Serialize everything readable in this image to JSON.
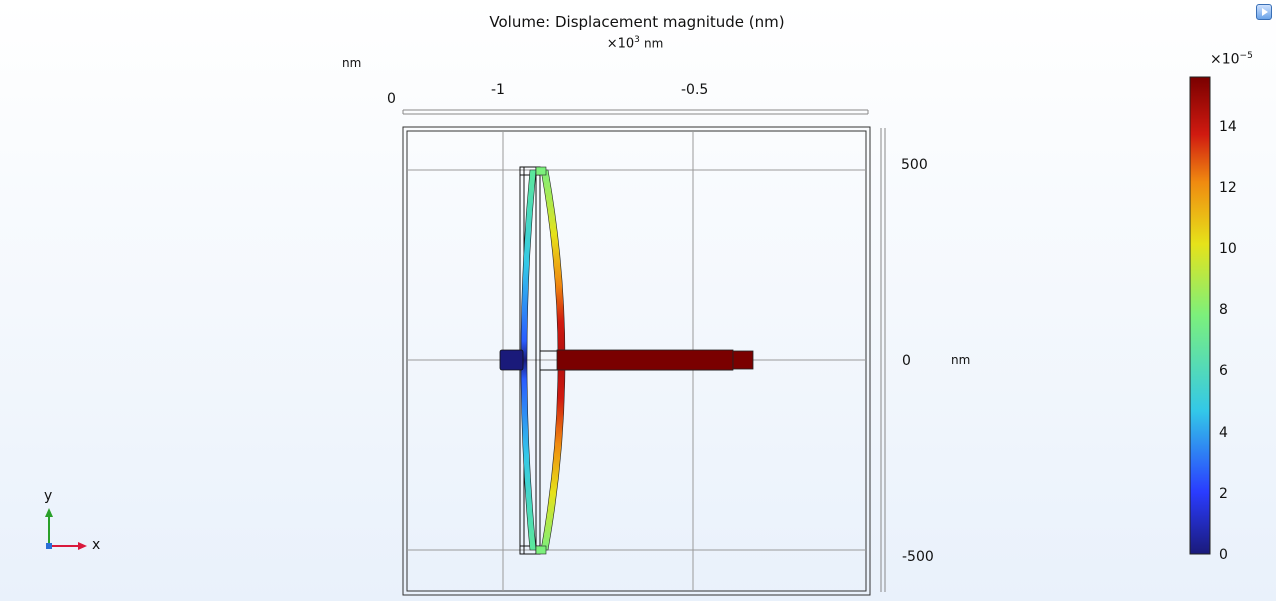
{
  "plot": {
    "title": "Volume: Displacement magnitude (nm)",
    "scale_factor": "×10",
    "scale_exponent": "3",
    "scale_unit": "nm",
    "top_axis_unit": "nm",
    "top_axis_ticks": [
      "0",
      "-1",
      "-0.5"
    ],
    "right_axis_ticks": [
      "500",
      "0",
      "-500"
    ],
    "right_axis_unit": "nm"
  },
  "colorbar": {
    "multiplier": "×10",
    "exponent": "−5",
    "ticks": [
      "14",
      "12",
      "10",
      "8",
      "6",
      "4",
      "2",
      "0"
    ],
    "range": [
      0,
      15.6
    ],
    "colormap": "rainbow",
    "colors": [
      "#1a1a7a",
      "#2a5cff",
      "#33c8e8",
      "#7cf07c",
      "#e6e21a",
      "#f08a10",
      "#d01a10",
      "#7a0000"
    ]
  },
  "triad": {
    "x_label": "x",
    "y_label": "y",
    "x_color": "#d9183b",
    "y_color": "#2aa02a"
  },
  "chart_data": {
    "type": "heatmap",
    "title": "Volume: Displacement magnitude (nm)",
    "colorbar_label": "×10^-5",
    "colorbar_range": [
      0,
      15.6
    ],
    "colorbar_ticks": [
      0,
      2,
      4,
      6,
      8,
      10,
      12,
      14
    ],
    "x_axis_ticks_x1000nm": [
      0,
      -1,
      -0.5
    ],
    "y_axis_ticks_nm": [
      500,
      0,
      -500
    ]
  }
}
